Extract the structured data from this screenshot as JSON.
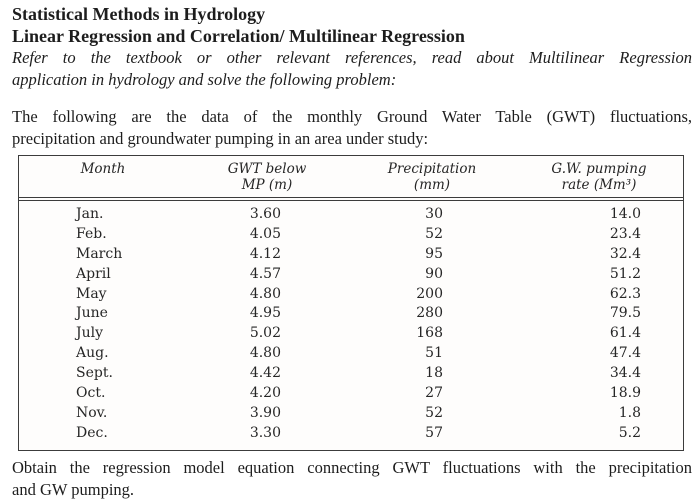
{
  "document": {
    "heading": {
      "line1": "Statistical Methods in Hydrology",
      "line2": "Linear Regression and Correlation/ Multilinear Regression"
    },
    "instructions": {
      "line1": "Refer to the textbook or other relevant references, read about Multilinear Regression",
      "line2": "application in hydrology and solve the following problem:"
    },
    "intro": {
      "line1": "The following are the data of the monthly Ground Water Table (GWT) fluctuations,",
      "line2": "precipitation and groundwater pumping in an area under study:"
    },
    "task": {
      "line1": "Obtain the regression model equation connecting GWT fluctuations with the precipitation",
      "line2": "and GW pumping."
    }
  },
  "table": {
    "columns": [
      {
        "label_line1": "Month",
        "label_line2": ""
      },
      {
        "label_line1": "GWT below",
        "label_line2": "MP (m)"
      },
      {
        "label_line1": "Precipitation",
        "label_line2": "(mm)"
      },
      {
        "label_line1": "G.W. pumping",
        "label_line2": "rate (Mm³)"
      }
    ],
    "rows": [
      {
        "month": "Jan.",
        "gwt": "3.60",
        "precip": "30",
        "pumping": "14.0"
      },
      {
        "month": "Feb.",
        "gwt": "4.05",
        "precip": "52",
        "pumping": "23.4"
      },
      {
        "month": "March",
        "gwt": "4.12",
        "precip": "95",
        "pumping": "32.4"
      },
      {
        "month": "April",
        "gwt": "4.57",
        "precip": "90",
        "pumping": "51.2"
      },
      {
        "month": "May",
        "gwt": "4.80",
        "precip": "200",
        "pumping": "62.3"
      },
      {
        "month": "June",
        "gwt": "4.95",
        "precip": "280",
        "pumping": "79.5"
      },
      {
        "month": "July",
        "gwt": "5.02",
        "precip": "168",
        "pumping": "61.4"
      },
      {
        "month": "Aug.",
        "gwt": "4.80",
        "precip": "51",
        "pumping": "47.4"
      },
      {
        "month": "Sept.",
        "gwt": "4.42",
        "precip": "18",
        "pumping": "34.4"
      },
      {
        "month": "Oct.",
        "gwt": "4.20",
        "precip": "27",
        "pumping": "18.9"
      },
      {
        "month": "Nov.",
        "gwt": "3.90",
        "precip": "52",
        "pumping": "1.8"
      },
      {
        "month": "Dec.",
        "gwt": "3.30",
        "precip": "57",
        "pumping": "5.2"
      }
    ]
  },
  "colors": {
    "text": "#1d1d1d",
    "table_border": "#3c3c3c",
    "background": "#ffffff"
  }
}
